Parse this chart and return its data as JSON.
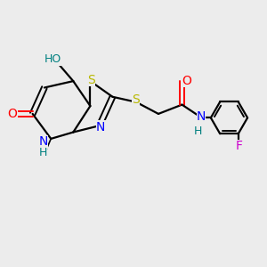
{
  "bg_color": "#ececec",
  "bond_color": "#000000",
  "atom_colors": {
    "S": "#b8b800",
    "N": "#0000ff",
    "O": "#ff0000",
    "F": "#cc00cc",
    "HO": "#008080",
    "H_teal": "#008080",
    "C": "#000000"
  },
  "figsize": [
    3.0,
    3.0
  ],
  "dpi": 100
}
